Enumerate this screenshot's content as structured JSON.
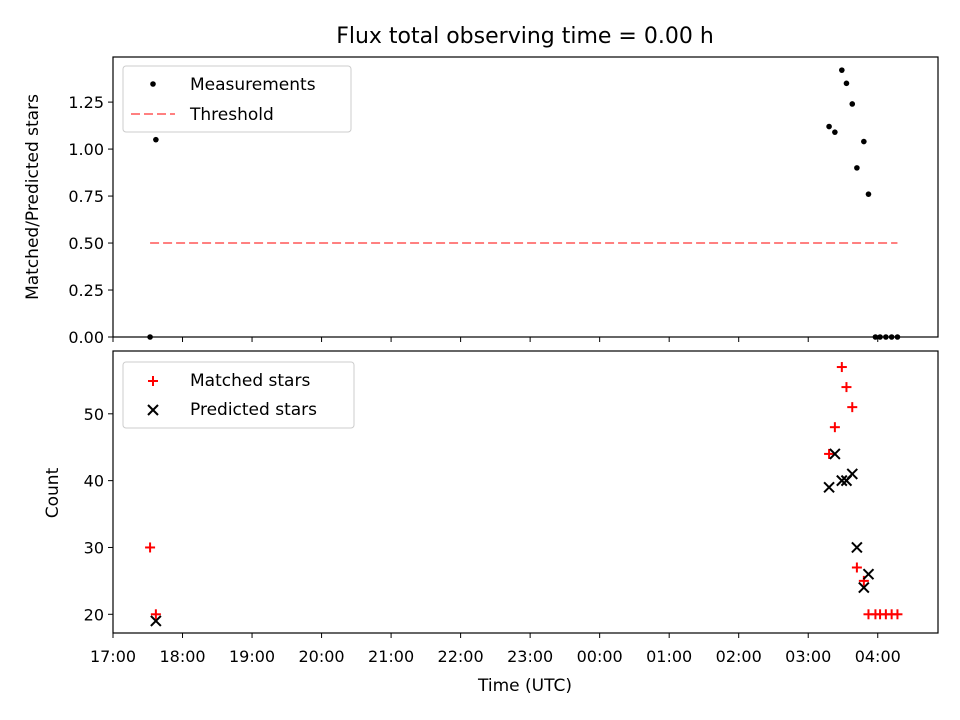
{
  "title": "Flux total observing time = 0.00 h",
  "chart_data": [
    {
      "type": "scatter",
      "panel": "top",
      "title": "Flux total observing time = 0.00 h",
      "xlabel": "",
      "ylabel": "Matched/Predicted stars",
      "xlim": [
        "17:00",
        "04:52"
      ],
      "ylim": [
        0,
        1.49
      ],
      "yticks": [
        0.0,
        0.25,
        0.5,
        0.75,
        1.0,
        1.25
      ],
      "ytick_labels": [
        "0.00",
        "0.25",
        "0.50",
        "0.75",
        "1.00",
        "1.25"
      ],
      "grid": false,
      "legend_position": "top-left",
      "series": [
        {
          "name": "Measurements",
          "marker": "dot",
          "color": "#000000",
          "points": [
            {
              "x": "17:32",
              "y": 0.0
            },
            {
              "x": "17:37",
              "y": 1.05
            },
            {
              "x": "03:18",
              "y": 1.12
            },
            {
              "x": "03:23",
              "y": 1.09
            },
            {
              "x": "03:29",
              "y": 1.42
            },
            {
              "x": "03:33",
              "y": 1.35
            },
            {
              "x": "03:38",
              "y": 1.24
            },
            {
              "x": "03:42",
              "y": 0.9
            },
            {
              "x": "03:48",
              "y": 1.04
            },
            {
              "x": "03:52",
              "y": 0.76
            },
            {
              "x": "03:58",
              "y": 0.0
            },
            {
              "x": "04:02",
              "y": 0.0
            },
            {
              "x": "04:07",
              "y": 0.0
            },
            {
              "x": "04:12",
              "y": 0.0
            },
            {
              "x": "04:17",
              "y": 0.0
            }
          ]
        },
        {
          "name": "Threshold",
          "style": "dashed-line",
          "color": "#ff8080",
          "points": [
            {
              "x": "17:32",
              "y": 0.5
            },
            {
              "x": "04:17",
              "y": 0.5
            }
          ]
        }
      ]
    },
    {
      "type": "scatter",
      "panel": "bottom",
      "xlabel": "Time (UTC)",
      "ylabel": "Count",
      "xlim": [
        "17:00",
        "04:52"
      ],
      "ylim": [
        17.2,
        59.4
      ],
      "xticks": [
        "17:00",
        "18:00",
        "19:00",
        "20:00",
        "21:00",
        "22:00",
        "23:00",
        "00:00",
        "01:00",
        "02:00",
        "03:00",
        "04:00"
      ],
      "yticks": [
        20,
        30,
        40,
        50
      ],
      "ytick_labels": [
        "20",
        "30",
        "40",
        "50"
      ],
      "grid": false,
      "legend_position": "top-left",
      "series": [
        {
          "name": "Matched stars",
          "marker": "plus",
          "color": "#ff0000",
          "points": [
            {
              "x": "17:32",
              "y": 30
            },
            {
              "x": "17:37",
              "y": 20
            },
            {
              "x": "03:18",
              "y": 44
            },
            {
              "x": "03:23",
              "y": 48
            },
            {
              "x": "03:29",
              "y": 57
            },
            {
              "x": "03:33",
              "y": 54
            },
            {
              "x": "03:38",
              "y": 51
            },
            {
              "x": "03:42",
              "y": 27
            },
            {
              "x": "03:48",
              "y": 25
            },
            {
              "x": "03:52",
              "y": 20
            },
            {
              "x": "03:58",
              "y": 20
            },
            {
              "x": "04:02",
              "y": 20
            },
            {
              "x": "04:07",
              "y": 20
            },
            {
              "x": "04:12",
              "y": 20
            },
            {
              "x": "04:17",
              "y": 20
            }
          ]
        },
        {
          "name": "Predicted stars",
          "marker": "x",
          "color": "#000000",
          "points": [
            {
              "x": "17:37",
              "y": 19
            },
            {
              "x": "03:18",
              "y": 39
            },
            {
              "x": "03:23",
              "y": 44
            },
            {
              "x": "03:29",
              "y": 40
            },
            {
              "x": "03:33",
              "y": 40
            },
            {
              "x": "03:38",
              "y": 41
            },
            {
              "x": "03:42",
              "y": 30
            },
            {
              "x": "03:48",
              "y": 24
            },
            {
              "x": "03:52",
              "y": 26
            }
          ]
        }
      ]
    }
  ]
}
